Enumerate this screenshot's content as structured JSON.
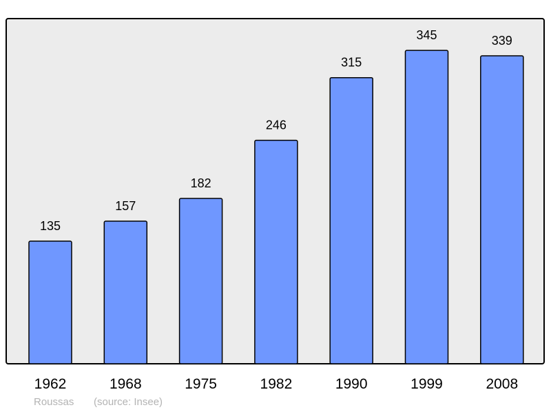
{
  "chart_data": {
    "type": "bar",
    "categories": [
      "1962",
      "1968",
      "1975",
      "1982",
      "1990",
      "1999",
      "2008"
    ],
    "values": [
      135,
      157,
      182,
      246,
      315,
      345,
      339
    ],
    "data_labels": [
      "135",
      "157",
      "182",
      "246",
      "315",
      "345",
      "339"
    ],
    "title": "",
    "xlabel": "",
    "ylabel": "",
    "ylim": [
      0,
      380
    ],
    "grid": false,
    "colors": {
      "bar": "#6f97ff",
      "plot_background": "#ececec",
      "frame": "#000000"
    }
  },
  "footer": {
    "place": "Roussas",
    "source": "(source: Insee)"
  }
}
